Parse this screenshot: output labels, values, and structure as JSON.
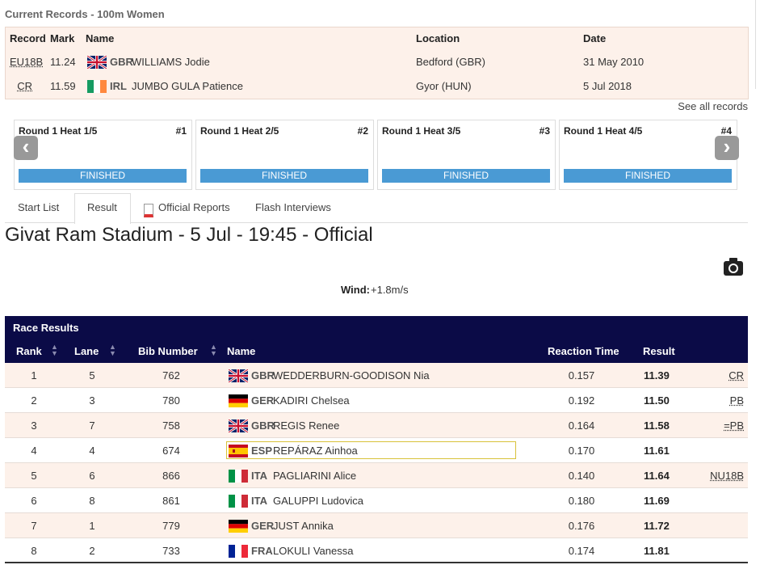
{
  "records": {
    "title": "Current Records - 100m Women",
    "headers": [
      "Record",
      "Mark",
      "Name",
      "Location",
      "Date"
    ],
    "rows": [
      {
        "record": "EU18B",
        "mark": "11.24",
        "country": "GBR",
        "name": "WILLIAMS Jodie",
        "location": "Bedford (GBR)",
        "date": "31 May 2010"
      },
      {
        "record": "CR",
        "mark": "11.59",
        "country": "IRL",
        "name": "JUMBO GULA Patience",
        "location": "Gyor (HUN)",
        "date": "5 Jul 2018"
      }
    ],
    "see_all": "See all records"
  },
  "heats": [
    {
      "label": "Round 1 Heat 1/5",
      "number": "#1",
      "status": "FINISHED"
    },
    {
      "label": "Round 1 Heat 2/5",
      "number": "#2",
      "status": "FINISHED"
    },
    {
      "label": "Round 1 Heat 3/5",
      "number": "#3",
      "status": "FINISHED"
    },
    {
      "label": "Round 1 Heat 4/5",
      "number": "#4",
      "status": "FINISHED"
    }
  ],
  "tabs": [
    "Start List",
    "Result",
    "Official Reports",
    "Flash Interviews"
  ],
  "heading": "Givat Ram Stadium - 5 Jul - 19:45 - Official",
  "wind": {
    "label": "Wind:",
    "value": "+1.8m/s"
  },
  "results": {
    "title": "Race Results",
    "headers": [
      "Rank",
      "Lane",
      "Bib Number",
      "Name",
      "Reaction Time",
      "Result"
    ],
    "rows": [
      {
        "rank": 1,
        "lane": 5,
        "bib": 762,
        "country": "GBR",
        "name": "WEDDERBURN-GOODISON Nia",
        "reaction": "0.157",
        "result": "11.39",
        "note": "CR"
      },
      {
        "rank": 2,
        "lane": 3,
        "bib": 780,
        "country": "GER",
        "name": "KADIRI Chelsea",
        "reaction": "0.192",
        "result": "11.50",
        "note": "PB"
      },
      {
        "rank": 3,
        "lane": 7,
        "bib": 758,
        "country": "GBR",
        "name": "REGIS Renee",
        "reaction": "0.164",
        "result": "11.58",
        "note": "=PB"
      },
      {
        "rank": 4,
        "lane": 4,
        "bib": 674,
        "country": "ESP",
        "name": "REPÁRAZ Ainhoa",
        "reaction": "0.170",
        "result": "11.61"
      },
      {
        "rank": 5,
        "lane": 6,
        "bib": 866,
        "country": "ITA",
        "name": "PAGLIARINI Alice",
        "reaction": "0.140",
        "result": "11.64",
        "note": "NU18B"
      },
      {
        "rank": 6,
        "lane": 8,
        "bib": 861,
        "country": "ITA",
        "name": "GALUPPI Ludovica",
        "reaction": "0.180",
        "result": "11.69"
      },
      {
        "rank": 7,
        "lane": 1,
        "bib": 779,
        "country": "GER",
        "name": "JUST Annika",
        "reaction": "0.176",
        "result": "11.72"
      },
      {
        "rank": 8,
        "lane": 2,
        "bib": 733,
        "country": "FRA",
        "name": "LOKULI Vanessa",
        "reaction": "0.174",
        "result": "11.81"
      }
    ]
  }
}
